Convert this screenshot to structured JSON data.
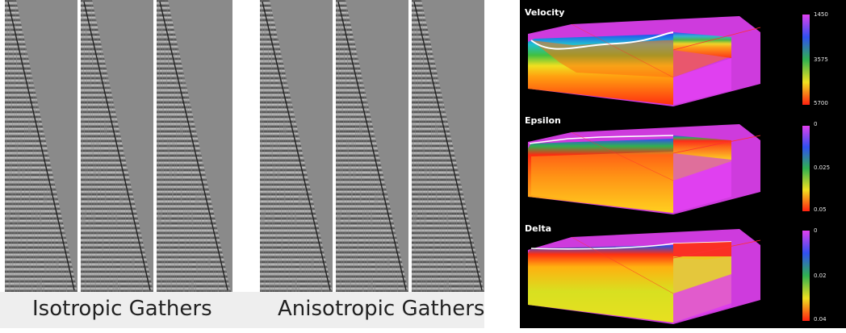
{
  "captions": {
    "isotropic": "Isotropic Gathers",
    "anisotropic": "Anisotropic Gathers"
  },
  "models": [
    {
      "title": "Velocity",
      "colorbar": {
        "top": "1450",
        "mid": "3575",
        "bottom": "5700"
      },
      "colors": {
        "top": "#d040f0",
        "mid": "#30a040",
        "bottom": "#ff2010"
      }
    },
    {
      "title": "Epsilon",
      "colorbar": {
        "top": "0",
        "mid": "0.025",
        "bottom": "0.05"
      },
      "colors": {
        "top": "#d040f0",
        "mid": "#30a040",
        "bottom": "#ff2010"
      }
    },
    {
      "title": "Delta",
      "colorbar": {
        "top": "0",
        "mid": "0.02",
        "bottom": "0.04"
      },
      "colors": {
        "top": "#d040f0",
        "mid": "#30a040",
        "bottom": "#ff2010"
      }
    }
  ]
}
